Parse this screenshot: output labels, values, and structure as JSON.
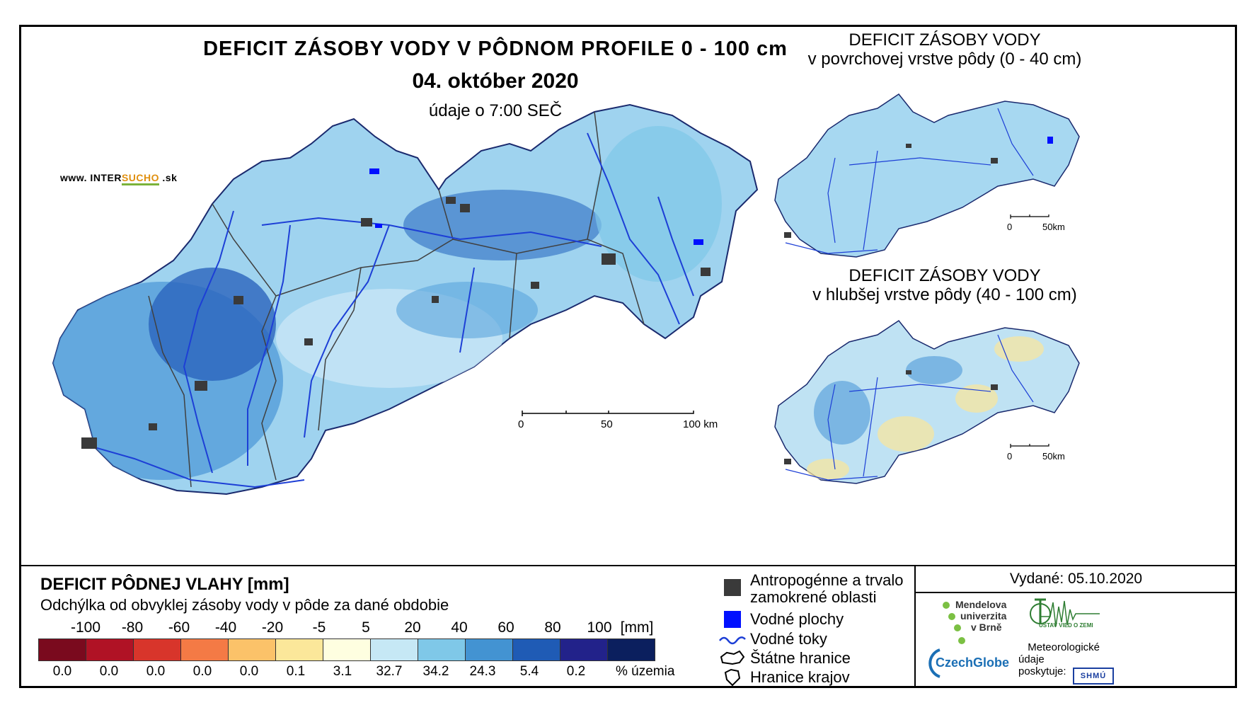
{
  "title": {
    "main": "DEFICIT ZÁSOBY VODY V PÔDNOM PROFILE 0 - 100 cm",
    "date": "04. október 2020",
    "time": "údaje o 7:00 SEČ"
  },
  "website": {
    "prefix": "www. INTER",
    "accent": "SUCHO",
    "suffix": " .sk"
  },
  "main_scale": {
    "labels": [
      "0",
      "50",
      "100 km"
    ]
  },
  "inset_top": {
    "title_line1": "DEFICIT ZÁSOBY VODY",
    "title_line2": "v povrchovej vrstve pôdy (0 - 40 cm)",
    "scale_labels": [
      "0",
      "50km"
    ]
  },
  "inset_bottom": {
    "title_line1": "DEFICIT ZÁSOBY VODY",
    "title_line2": "v hlubšej vrstve pôdy (40 - 100 cm)",
    "scale_labels": [
      "0",
      "50km"
    ]
  },
  "legend": {
    "title": "DEFICIT PÔDNEJ VLAHY [mm]",
    "subtitle": "Odchýlka od obvyklej zásoby vody v pôde za dané obdobie",
    "thresholds": [
      "-100",
      "-80",
      "-60",
      "-40",
      "-20",
      "-5",
      "5",
      "20",
      "40",
      "60",
      "80",
      "100"
    ],
    "unit": "[mm]",
    "colors": [
      "#7a0a1e",
      "#b01225",
      "#d8352b",
      "#f47a45",
      "#fbc269",
      "#fbe79a",
      "#fefee0",
      "#c6e8f5",
      "#7fc8e8",
      "#4393d2",
      "#1f5bb5",
      "#22228a",
      "#0b1f5e"
    ],
    "percentages": [
      "0.0",
      "0.0",
      "0.0",
      "0.0",
      "0.0",
      "0.1",
      "3.1",
      "32.7",
      "34.2",
      "24.3",
      "5.4",
      "0.2"
    ],
    "pct_unit": "% územia"
  },
  "symbols": {
    "anthropogenic_line1": "Antropogénne a trvalo",
    "anthropogenic_line2": "zamokrené oblasti",
    "water_bodies": "Vodné plochy",
    "streams": "Vodné toky",
    "state_border": "Štátne hranice",
    "region_border": "Hranice krajov"
  },
  "issued": "Vydané: 05.10.2020",
  "logos": {
    "mendel_line1": "Mendelova",
    "mendel_line2": "univerzita",
    "mendel_line3": "v Brně",
    "czechglobe": "CzechGlobe",
    "uvgz": "ÚSTAV VIED O ZEMI",
    "meteo_line1": "Meteorologické",
    "meteo_line2": "údaje",
    "meteo_line3": "poskytuje:",
    "shmu": "SHMÚ"
  },
  "colors": {
    "country_fill": "#9fd3ef",
    "river": "#1d3fd6",
    "urban": "#3a3a3a",
    "water": "#0010ff",
    "light_fill": "#c8e6f6",
    "dark_fill": "#3f88cf"
  }
}
